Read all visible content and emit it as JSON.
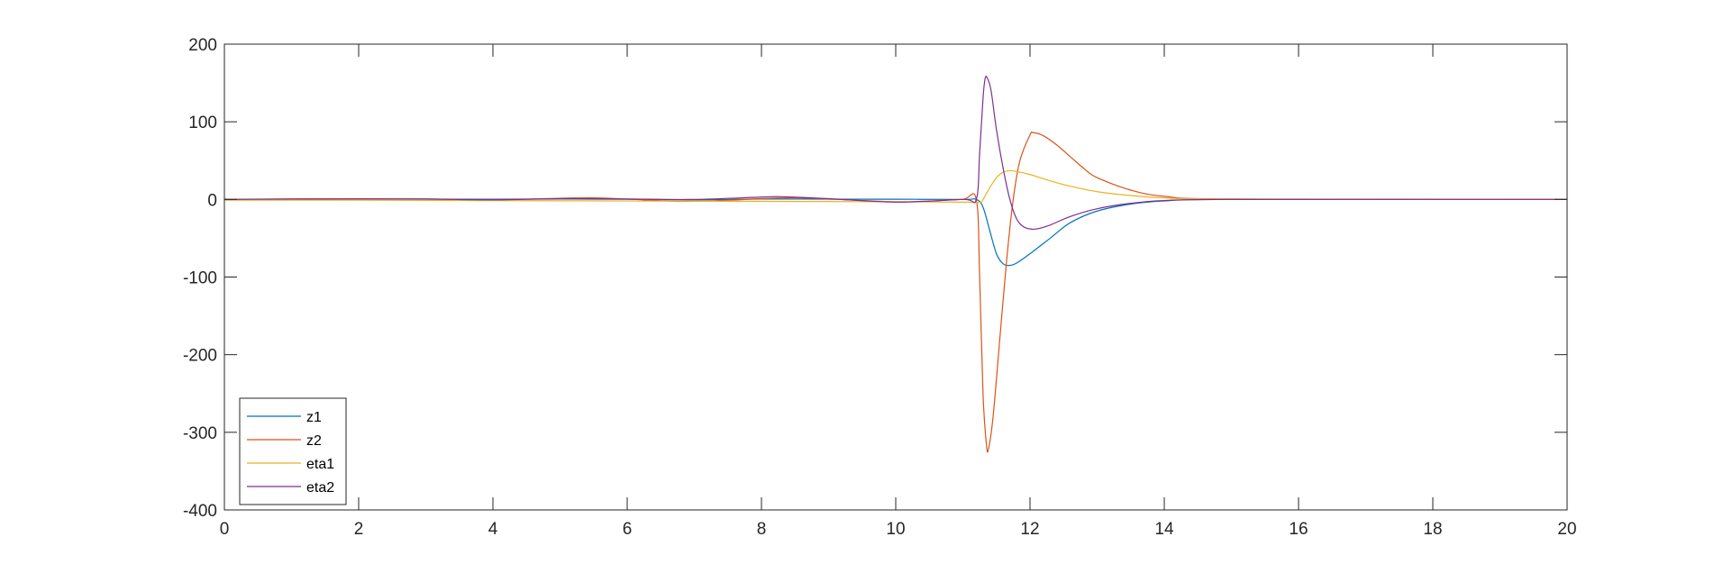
{
  "chart_data": {
    "type": "line",
    "title": "",
    "xlabel": "",
    "ylabel": "",
    "xlim": [
      0,
      20
    ],
    "ylim": [
      -400,
      200
    ],
    "xticks": [
      0,
      2,
      4,
      6,
      8,
      10,
      12,
      14,
      16,
      18,
      20
    ],
    "yticks": [
      200,
      100,
      0,
      -100,
      -200,
      -300,
      -400
    ],
    "xtick_labels": [
      "0",
      "2",
      "4",
      "6",
      "8",
      "10",
      "12",
      "14",
      "16",
      "18",
      "20"
    ],
    "ytick_labels": [
      "200",
      "100",
      "0",
      "-100",
      "-200",
      "-300",
      "-400"
    ],
    "grid": false,
    "legend_position": "bottom-left",
    "series": [
      {
        "name": "z1",
        "color": "#0072BD",
        "points": [
          [
            0,
            0
          ],
          [
            1,
            0.3
          ],
          [
            2,
            0.5
          ],
          [
            3,
            0.4
          ],
          [
            4,
            0.3
          ],
          [
            5,
            0.5
          ],
          [
            6,
            0.2
          ],
          [
            7,
            -0.5
          ],
          [
            8,
            0.5
          ],
          [
            9,
            0.3
          ],
          [
            10,
            0.2
          ],
          [
            11,
            0
          ],
          [
            11.2,
            0
          ],
          [
            11.3,
            -10
          ],
          [
            11.4,
            -40
          ],
          [
            11.5,
            -70
          ],
          [
            11.6,
            -83
          ],
          [
            11.7,
            -85
          ],
          [
            11.8,
            -82
          ],
          [
            12,
            -70
          ],
          [
            12.3,
            -50
          ],
          [
            12.6,
            -30
          ],
          [
            13,
            -15
          ],
          [
            13.5,
            -6
          ],
          [
            14,
            -2
          ],
          [
            15,
            0
          ],
          [
            20,
            0
          ]
        ]
      },
      {
        "name": "z2",
        "color": "#D95319",
        "points": [
          [
            0,
            0
          ],
          [
            1,
            0.5
          ],
          [
            2,
            0.8
          ],
          [
            3,
            0.5
          ],
          [
            4,
            -0.5
          ],
          [
            5,
            1.5
          ],
          [
            5.5,
            2
          ],
          [
            6,
            0.5
          ],
          [
            6.8,
            -2.5
          ],
          [
            7.5,
            -1
          ],
          [
            8,
            1
          ],
          [
            8.5,
            2
          ],
          [
            9,
            0.5
          ],
          [
            10,
            -3
          ],
          [
            10.5,
            -2
          ],
          [
            11,
            0
          ],
          [
            11.2,
            0
          ],
          [
            11.25,
            -100
          ],
          [
            11.3,
            -250
          ],
          [
            11.35,
            -315
          ],
          [
            11.38,
            -322
          ],
          [
            11.45,
            -280
          ],
          [
            11.55,
            -180
          ],
          [
            11.65,
            -80
          ],
          [
            11.75,
            0
          ],
          [
            11.85,
            50
          ],
          [
            12,
            83
          ],
          [
            12.05,
            86
          ],
          [
            12.2,
            82
          ],
          [
            12.4,
            70
          ],
          [
            12.6,
            55
          ],
          [
            12.8,
            40
          ],
          [
            13,
            28
          ],
          [
            13.5,
            12
          ],
          [
            14,
            4
          ],
          [
            15,
            0.5
          ],
          [
            20,
            0
          ]
        ]
      },
      {
        "name": "eta1",
        "color": "#EDB120",
        "points": [
          [
            0,
            -1
          ],
          [
            2,
            -1
          ],
          [
            4,
            -1.5
          ],
          [
            6,
            -2
          ],
          [
            8,
            -2.5
          ],
          [
            10,
            -3
          ],
          [
            11,
            -3.5
          ],
          [
            11.25,
            -4
          ],
          [
            11.3,
            0
          ],
          [
            11.4,
            15
          ],
          [
            11.5,
            28
          ],
          [
            11.6,
            35
          ],
          [
            11.7,
            37
          ],
          [
            11.8,
            36
          ],
          [
            12,
            32
          ],
          [
            12.3,
            24
          ],
          [
            12.6,
            17
          ],
          [
            13,
            10
          ],
          [
            13.5,
            5
          ],
          [
            14,
            2
          ],
          [
            15,
            0.5
          ],
          [
            20,
            0
          ]
        ]
      },
      {
        "name": "eta2",
        "color": "#7E2F8E",
        "points": [
          [
            0,
            0
          ],
          [
            1,
            0.5
          ],
          [
            2,
            0.5
          ],
          [
            3,
            0.5
          ],
          [
            4,
            -0.5
          ],
          [
            5,
            1
          ],
          [
            6,
            0.5
          ],
          [
            7,
            0
          ],
          [
            8,
            3
          ],
          [
            8.3,
            3.5
          ],
          [
            9,
            1
          ],
          [
            10,
            -3.5
          ],
          [
            11,
            0
          ],
          [
            11.2,
            0
          ],
          [
            11.25,
            60
          ],
          [
            11.3,
            130
          ],
          [
            11.33,
            155
          ],
          [
            11.36,
            157
          ],
          [
            11.42,
            140
          ],
          [
            11.5,
            90
          ],
          [
            11.6,
            40
          ],
          [
            11.7,
            0
          ],
          [
            11.8,
            -25
          ],
          [
            11.9,
            -35
          ],
          [
            12,
            -38
          ],
          [
            12.1,
            -38
          ],
          [
            12.3,
            -33
          ],
          [
            12.6,
            -22
          ],
          [
            13,
            -12
          ],
          [
            13.5,
            -5
          ],
          [
            14,
            -1.5
          ],
          [
            15,
            0
          ],
          [
            20,
            0
          ]
        ]
      }
    ]
  }
}
